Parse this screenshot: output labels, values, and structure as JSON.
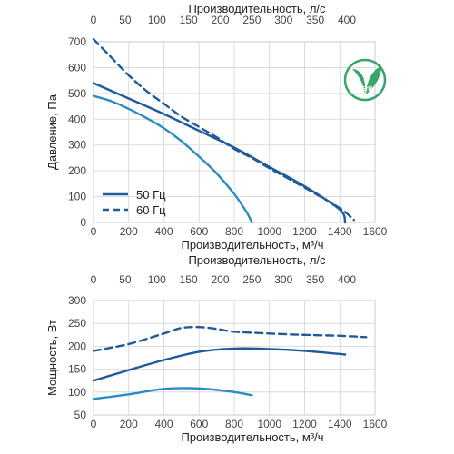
{
  "colors": {
    "series_dark": "#1f5a99",
    "series_light": "#2b8cc4",
    "logo_green": "#3aa56b"
  },
  "logo": {
    "icon": "erp-leaf-icon",
    "text": "ErP",
    "year": "2018"
  },
  "chart_data": [
    {
      "type": "line",
      "ylabel": "Давление, Па",
      "xlabel": "Производительность, м³/ч",
      "x2label": "Производительность, л/с",
      "xlim": [
        0,
        1600
      ],
      "ylim": [
        0,
        700
      ],
      "x2lim": [
        0,
        444.44
      ],
      "x_ticks": [
        "0",
        "200",
        "400",
        "600",
        "800",
        "1000",
        "1200",
        "1400",
        "1600"
      ],
      "x2_ticks": [
        "0",
        "50",
        "100",
        "150",
        "200",
        "250",
        "300",
        "350",
        "400"
      ],
      "y_ticks": [
        "0",
        "100",
        "200",
        "300",
        "400",
        "500",
        "600",
        "700"
      ],
      "grid": true,
      "legend": {
        "position": "bottom-left",
        "entries": [
          {
            "label": "50 Гц",
            "style": "solid"
          },
          {
            "label": "60 Гц",
            "style": "dashed"
          }
        ]
      },
      "series": [
        {
          "name": "50 Гц",
          "color": "#1f5a99",
          "style": "solid",
          "x": [
            0,
            200,
            400,
            600,
            800,
            1000,
            1200,
            1400,
            1430
          ],
          "y": [
            540,
            480,
            420,
            355,
            290,
            215,
            140,
            50,
            0
          ]
        },
        {
          "color": "#2b8cc4",
          "style": "solid",
          "x": [
            0,
            100,
            200,
            300,
            400,
            500,
            600,
            700,
            800,
            870,
            900
          ],
          "y": [
            490,
            470,
            440,
            405,
            365,
            315,
            255,
            190,
            110,
            40,
            0
          ]
        },
        {
          "name": "60 Гц",
          "color": "#1f5a99",
          "style": "dashed",
          "x": [
            0,
            100,
            200,
            300,
            400,
            500,
            600,
            700,
            800,
            900,
            1000,
            1200,
            1400,
            1480
          ],
          "y": [
            710,
            640,
            570,
            510,
            460,
            410,
            370,
            330,
            285,
            250,
            210,
            135,
            55,
            10
          ]
        }
      ]
    },
    {
      "type": "line",
      "ylabel": "Мощность, Вт",
      "xlabel": "Производительность, м³/ч",
      "x2label": "Производительность, л/с",
      "xlim": [
        0,
        1600
      ],
      "ylim": [
        50,
        300
      ],
      "x2lim": [
        0,
        444.44
      ],
      "x_ticks": [
        "0",
        "200",
        "400",
        "600",
        "800",
        "1000",
        "1200",
        "1400",
        "1600"
      ],
      "x2_ticks": [
        "0",
        "50",
        "100",
        "150",
        "200",
        "250",
        "300",
        "350",
        "400"
      ],
      "y_ticks": [
        "50",
        "100",
        "150",
        "200",
        "250",
        "300"
      ],
      "grid": true,
      "series": [
        {
          "color": "#1f5a99",
          "style": "dashed",
          "x": [
            0,
            200,
            400,
            500,
            600,
            700,
            800,
            1000,
            1200,
            1400,
            1550
          ],
          "y": [
            190,
            205,
            228,
            240,
            242,
            238,
            232,
            228,
            225,
            223,
            220
          ]
        },
        {
          "color": "#1f5a99",
          "style": "solid",
          "x": [
            0,
            200,
            400,
            600,
            800,
            1000,
            1200,
            1430
          ],
          "y": [
            125,
            148,
            170,
            188,
            195,
            194,
            190,
            182
          ]
        },
        {
          "color": "#2b8cc4",
          "style": "solid",
          "x": [
            0,
            200,
            400,
            600,
            800,
            900
          ],
          "y": [
            85,
            95,
            107,
            108,
            100,
            93
          ]
        }
      ]
    }
  ]
}
